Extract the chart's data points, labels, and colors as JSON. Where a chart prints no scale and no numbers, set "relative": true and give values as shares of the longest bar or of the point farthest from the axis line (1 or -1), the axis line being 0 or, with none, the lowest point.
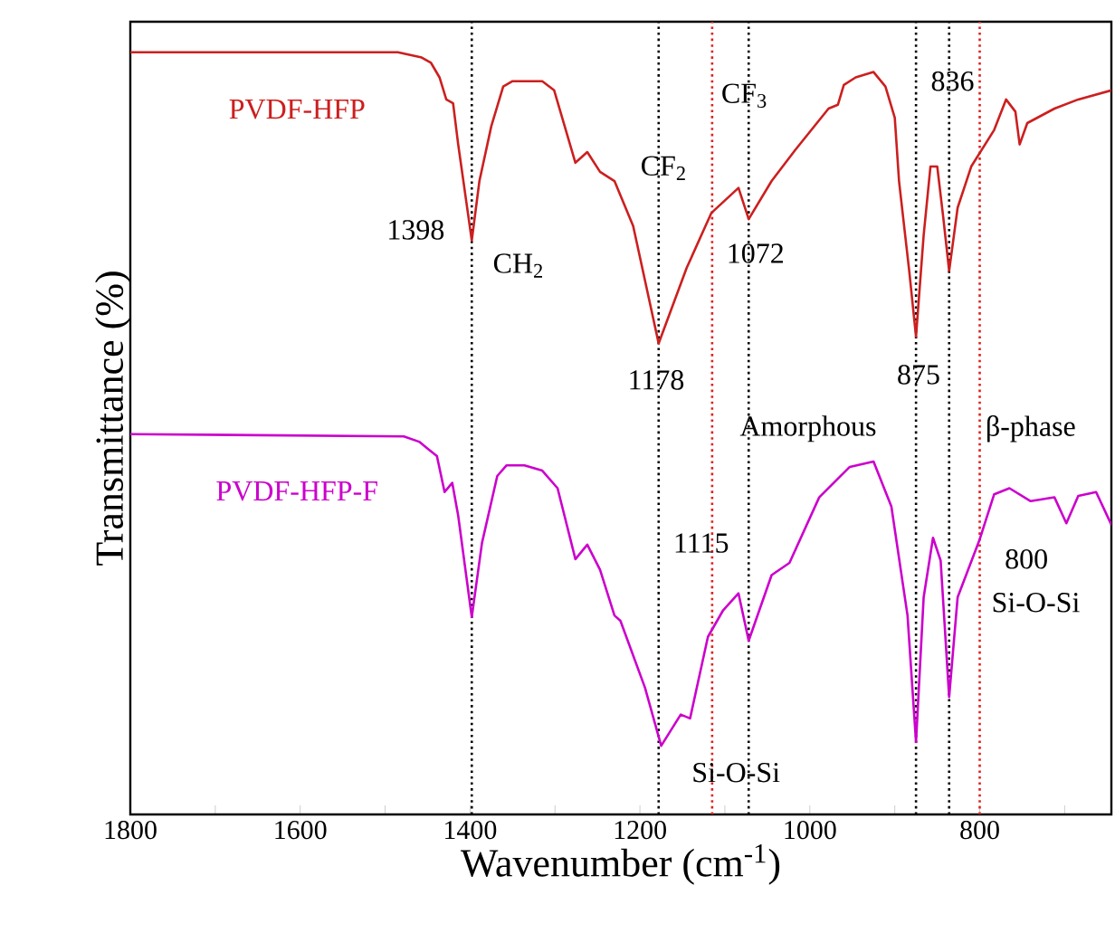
{
  "chart_data": {
    "type": "line",
    "relative": true,
    "xlabel": "Wavenumber (cm$^{-1}$)",
    "ylabel": "Transmittance (%)",
    "xlim": [
      1800,
      645
    ],
    "xticks": [
      1800,
      {
        "value": 1700,
        "label": null
      },
      1600,
      {
        "value": 1500,
        "label": null
      },
      1400,
      {
        "value": 1300,
        "label": null
      },
      1200,
      {
        "value": 1100,
        "label": null
      },
      1000,
      {
        "value": 900,
        "label": null
      },
      800,
      {
        "value": 700,
        "label": null
      }
    ],
    "tick_labels": "x",
    "grid": false,
    "legend": false,
    "marker": "none",
    "line_style": "solid",
    "series": [
      {
        "name": "PVDF-HFP",
        "color": "#cc1f1f",
        "x": [
          1800,
          1485,
          1457,
          1446,
          1436,
          1428,
          1420,
          1414,
          1398,
          1389,
          1375,
          1361,
          1350,
          1315,
          1301,
          1276,
          1262,
          1247,
          1230,
          1208,
          1178,
          1145,
          1116,
          1084,
          1072,
          1045,
          1017,
          978,
          967,
          960,
          946,
          925,
          911,
          900,
          895,
          883,
          875,
          866,
          858,
          850,
          843,
          836,
          826,
          810,
          783,
          769,
          758,
          753,
          744,
          712,
          684,
          645
        ],
        "values": [
          1.0,
          1.0,
          0.993,
          0.986,
          0.967,
          0.938,
          0.933,
          0.879,
          0.753,
          0.831,
          0.903,
          0.955,
          0.962,
          0.962,
          0.95,
          0.855,
          0.869,
          0.843,
          0.831,
          0.772,
          0.618,
          0.717,
          0.789,
          0.822,
          0.781,
          0.831,
          0.872,
          0.926,
          0.931,
          0.957,
          0.967,
          0.974,
          0.955,
          0.914,
          0.831,
          0.713,
          0.627,
          0.76,
          0.85,
          0.85,
          0.784,
          0.713,
          0.796,
          0.85,
          0.898,
          0.938,
          0.922,
          0.879,
          0.907,
          0.926,
          0.938,
          0.95
        ]
      },
      {
        "name": "PVDF-HFP-F",
        "color": "#cc00cc",
        "x": [
          1800,
          1478,
          1460,
          1450,
          1439,
          1430,
          1421,
          1414,
          1398,
          1386,
          1368,
          1357,
          1336,
          1315,
          1297,
          1276,
          1262,
          1247,
          1230,
          1223,
          1194,
          1175,
          1152,
          1141,
          1120,
          1102,
          1084,
          1072,
          1045,
          1024,
          989,
          953,
          925,
          904,
          885,
          875,
          866,
          855,
          846,
          836,
          826,
          800,
          783,
          765,
          740,
          712,
          698,
          684,
          663,
          645
        ],
        "values": [
          0.499,
          0.496,
          0.489,
          0.48,
          0.47,
          0.423,
          0.435,
          0.392,
          0.259,
          0.356,
          0.444,
          0.458,
          0.458,
          0.451,
          0.428,
          0.335,
          0.354,
          0.321,
          0.261,
          0.254,
          0.166,
          0.09,
          0.131,
          0.126,
          0.233,
          0.268,
          0.29,
          0.228,
          0.314,
          0.33,
          0.416,
          0.456,
          0.463,
          0.404,
          0.261,
          0.095,
          0.285,
          0.363,
          0.333,
          0.154,
          0.285,
          0.361,
          0.42,
          0.428,
          0.411,
          0.416,
          0.382,
          0.418,
          0.423,
          0.38
        ]
      }
    ],
    "ref_lines": [
      {
        "axis": "x",
        "value": 1398,
        "color": "#000000",
        "line_style": "dotted"
      },
      {
        "axis": "x",
        "value": 1178,
        "color": "#000000",
        "line_style": "dotted"
      },
      {
        "axis": "x",
        "value": 1072,
        "color": "#000000",
        "line_style": "dotted"
      },
      {
        "axis": "x",
        "value": 875,
        "color": "#000000",
        "line_style": "dotted"
      },
      {
        "axis": "x",
        "value": 836,
        "color": "#000000",
        "line_style": "dotted"
      },
      {
        "axis": "x",
        "value": 1115,
        "color": "#e02020",
        "line_style": "dotted"
      },
      {
        "axis": "x",
        "value": 800,
        "color": "#e02020",
        "line_style": "dotted"
      }
    ],
    "annotations": [
      "1398",
      "CH$_{2}$",
      {
        "text": "CF$_{2}$",
        "x": 1172,
        "y": 0.848
      },
      {
        "text": "CF$_{3}$",
        "x": 1077,
        "y": 0.943
      },
      {
        "text": "1072",
        "x": 1064,
        "y": 0.736
      },
      {
        "text": "1178",
        "x": 1181,
        "y": 0.57
      },
      {
        "text": "836",
        "x": 832,
        "y": 0.962
      },
      {
        "text": "875",
        "x": 872,
        "y": 0.577
      },
      "Amorphous",
      "β-phase",
      "1115",
      "800",
      "Si-O-Si",
      "Si-O-Si"
    ]
  }
}
